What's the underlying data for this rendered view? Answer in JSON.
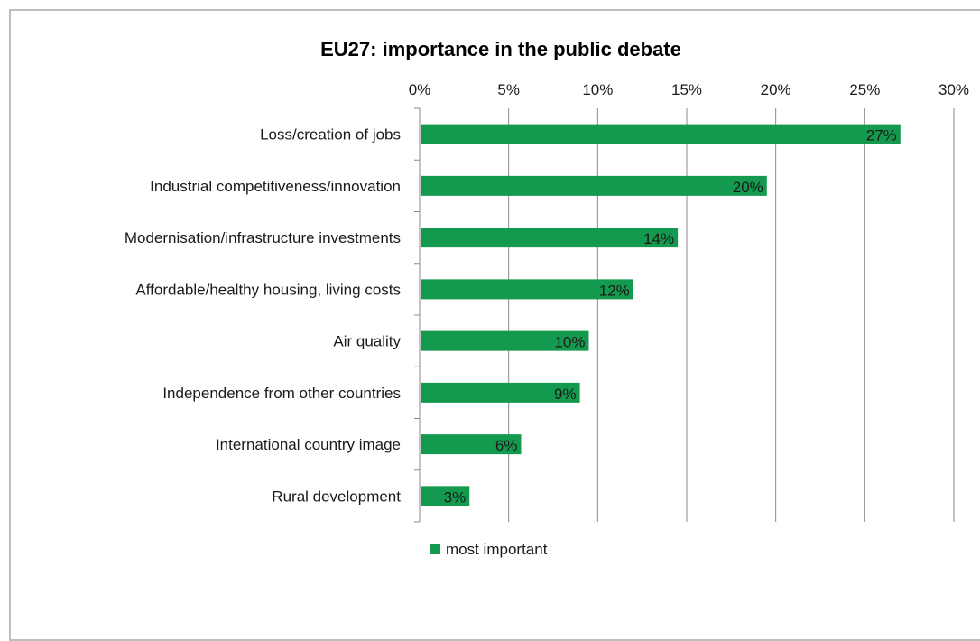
{
  "chart_data": {
    "type": "bar",
    "orientation": "horizontal",
    "title": "EU27: importance in the public debate",
    "categories": [
      "Loss/creation of jobs",
      "Industrial competitiveness/innovation",
      "Modernisation/infrastructure investments",
      "Affordable/healthy housing, living costs",
      "Air quality",
      "Independence from other countries",
      "International country image",
      "Rural development"
    ],
    "series": [
      {
        "name": "most important",
        "values": [
          27,
          19.5,
          14.5,
          12,
          9.5,
          9,
          5.7,
          2.8
        ],
        "data_labels": [
          "27%",
          "20%",
          "14%",
          "12%",
          "10%",
          "9%",
          "6%",
          "3%"
        ],
        "color": "#149a4e"
      }
    ],
    "xlim": [
      0,
      30
    ],
    "x_ticks": [
      0,
      5,
      10,
      15,
      20,
      25,
      30
    ],
    "x_tick_labels": [
      "0%",
      "5%",
      "10%",
      "15%",
      "20%",
      "25%",
      "30%"
    ],
    "x_axis_position": "top",
    "grid": true,
    "legend_position": "bottom"
  }
}
